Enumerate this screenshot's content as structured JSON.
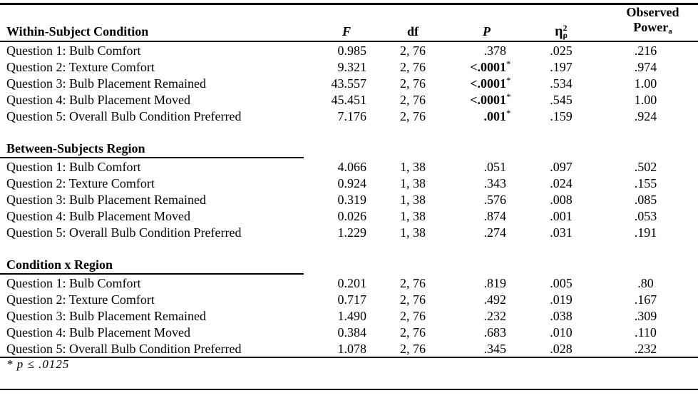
{
  "header": {
    "condition": "Within-Subject Condition",
    "f": "F",
    "df": "df",
    "p": "P",
    "eta": {
      "symbol": "η",
      "sup": "2",
      "sub": "ρ"
    },
    "power_line1": "Observed",
    "power_line2": "Power",
    "power_sub": "a"
  },
  "footnote": "* p ≤ .0125",
  "sections": [
    {
      "title": "Within-Subject Condition",
      "rows": [
        {
          "label": "Question 1: Bulb Comfort",
          "f": "0.985",
          "df": "2, 76",
          "p": ".378",
          "star": "",
          "eta": ".025",
          "power": ".216"
        },
        {
          "label": "Question 2: Texture Comfort",
          "f": "9.321",
          "df": "2, 76",
          "p": "<.0001",
          "star": "*",
          "eta": ".197",
          "power": ".974"
        },
        {
          "label": "Question 3: Bulb Placement Remained",
          "f": "43.557",
          "df": "2, 76",
          "p": "<.0001",
          "star": "*",
          "eta": ".534",
          "power": "1.00"
        },
        {
          "label": "Question 4: Bulb Placement Moved",
          "f": "45.451",
          "df": "2, 76",
          "p": "<.0001",
          "star": "*",
          "eta": ".545",
          "power": "1.00"
        },
        {
          "label": "Question 5: Overall Bulb Condition Preferred",
          "f": "7.176",
          "df": "2, 76",
          "p": ".001",
          "star": "*",
          "eta": ".159",
          "power": ".924"
        }
      ]
    },
    {
      "title": "Between-Subjects Region",
      "rows": [
        {
          "label": "Question 1: Bulb Comfort",
          "f": "4.066",
          "df": "1, 38",
          "p": ".051",
          "star": "",
          "eta": ".097",
          "power": ".502"
        },
        {
          "label": "Question 2: Texture Comfort",
          "f": "0.924",
          "df": "1, 38",
          "p": ".343",
          "star": "",
          "eta": ".024",
          "power": ".155"
        },
        {
          "label": "Question 3: Bulb Placement Remained",
          "f": "0.319",
          "df": "1, 38",
          "p": ".576",
          "star": "",
          "eta": ".008",
          "power": ".085"
        },
        {
          "label": "Question 4: Bulb Placement Moved",
          "f": "0.026",
          "df": "1, 38",
          "p": ".874",
          "star": "",
          "eta": ".001",
          "power": ".053"
        },
        {
          "label": "Question 5: Overall Bulb Condition Preferred",
          "f": "1.229",
          "df": "1, 38",
          "p": ".274",
          "star": "",
          "eta": ".031",
          "power": ".191"
        }
      ]
    },
    {
      "title": "Condition x Region",
      "rows": [
        {
          "label": "Question 1: Bulb Comfort",
          "f": "0.201",
          "df": "2, 76",
          "p": ".819",
          "star": "",
          "eta": ".005",
          "power": ".80"
        },
        {
          "label": "Question 2: Texture Comfort",
          "f": "0.717",
          "df": "2, 76",
          "p": ".492",
          "star": "",
          "eta": ".019",
          "power": ".167"
        },
        {
          "label": "Question 3: Bulb Placement Remained",
          "f": "1.490",
          "df": "2, 76",
          "p": ".232",
          "star": "",
          "eta": ".038",
          "power": ".309"
        },
        {
          "label": "Question 4: Bulb Placement Moved",
          "f": "0.384",
          "df": "2, 76",
          "p": ".683",
          "star": "",
          "eta": ".010",
          "power": ".110"
        },
        {
          "label": "Question 5: Overall Bulb Condition Preferred",
          "f": "1.078",
          "df": "2, 76",
          "p": ".345",
          "star": "",
          "eta": ".028",
          "power": ".232"
        }
      ]
    }
  ]
}
